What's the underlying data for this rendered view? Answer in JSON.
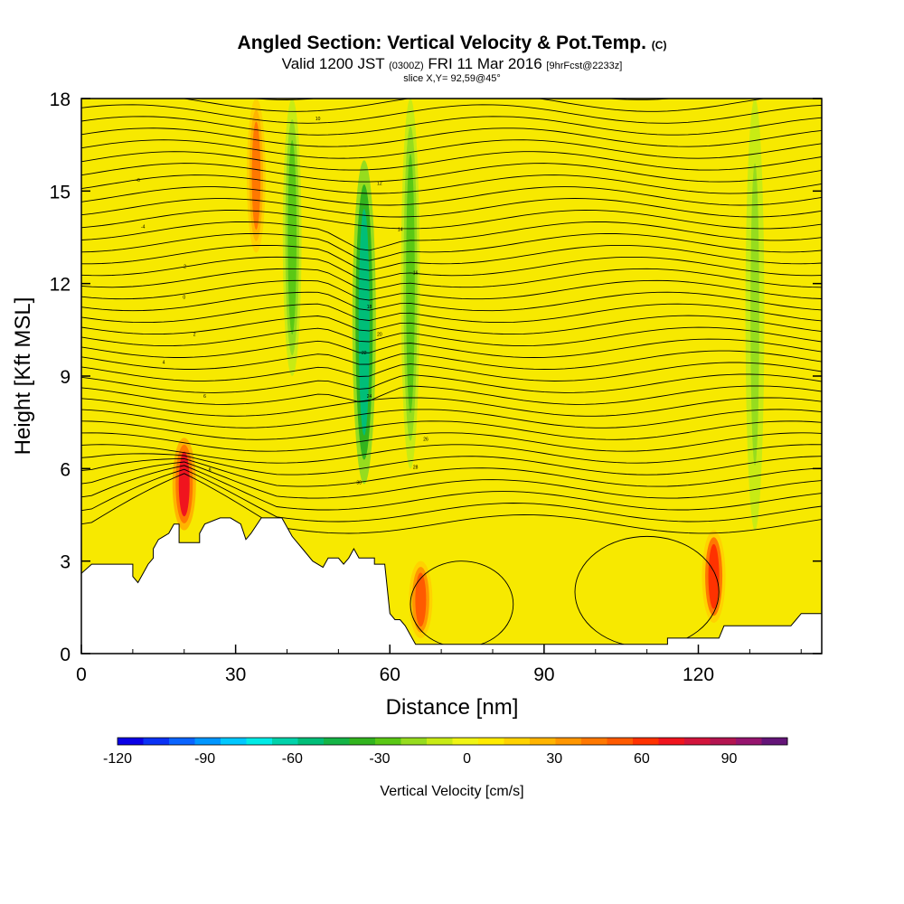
{
  "chart_data": {
    "type": "heatmap",
    "title": "Angled Section: Vertical Velocity & Pot.Temp.",
    "title_unit": "(C)",
    "subtitle_prefix": "Valid 1200 JST",
    "subtitle_utc": "(0300Z)",
    "subtitle_date": "FRI 11 Mar 2016",
    "subtitle_fcst": "[9hrFcst@2233z]",
    "subtitle_slice": "slice X,Y= 92,59@45°",
    "xlabel": "Distance [nm]",
    "ylabel": "Height [Kft MSL]",
    "xlim": [
      0,
      144
    ],
    "ylim": [
      0,
      18
    ],
    "xticks": [
      "0",
      "30",
      "60",
      "90",
      "120"
    ],
    "yticks": [
      "0",
      "3",
      "6",
      "9",
      "12",
      "15",
      "18"
    ],
    "colorbar": {
      "label": "Vertical Velocity [cm/s]",
      "range": [
        -120,
        110
      ],
      "tick_labels": [
        "-120",
        "-90",
        "-60",
        "-30",
        "0",
        "30",
        "60",
        "90"
      ],
      "colors": [
        "#0a00e6",
        "#0a32f5",
        "#0a64ff",
        "#0096ff",
        "#00c8ff",
        "#00ebe6",
        "#00d2aa",
        "#00be78",
        "#14b446",
        "#32b41e",
        "#5ac814",
        "#96dc1e",
        "#c8eb14",
        "#f0f514",
        "#ffeb00",
        "#ffd200",
        "#ffb400",
        "#ff9600",
        "#ff7800",
        "#ff5a00",
        "#ff3200",
        "#f0141e",
        "#d2143c",
        "#b41450",
        "#96146e",
        "#641478"
      ]
    },
    "contour_labels": [
      "-6",
      "-4",
      "-2",
      "0",
      "2",
      "4",
      "6",
      "8",
      "10",
      "12",
      "14",
      "16",
      "18",
      "20",
      "22",
      "24",
      "26",
      "28",
      "30"
    ],
    "vertical_velocity_features": [
      {
        "distance": 20,
        "height_top": 7,
        "height_bottom": 4,
        "peak_cms": 70
      },
      {
        "distance": 34,
        "height_top": 18,
        "height_bottom": 13,
        "peak_cms": 40
      },
      {
        "distance": 41,
        "height_top": 18,
        "height_bottom": 9,
        "peak_cms": -30
      },
      {
        "distance": 55,
        "height_top": 16,
        "height_bottom": 5.5,
        "peak_cms": -50
      },
      {
        "distance": 64,
        "height_top": 18,
        "height_bottom": 6,
        "peak_cms": -30
      },
      {
        "distance": 66,
        "height_top": 3,
        "height_bottom": 0.5,
        "peak_cms": 50
      },
      {
        "distance": 123,
        "height_top": 4,
        "height_bottom": 1,
        "peak_cms": 60
      },
      {
        "distance": 131,
        "height_top": 18,
        "height_bottom": 4,
        "peak_cms": -20
      }
    ],
    "terrain": [
      [
        0,
        2.6
      ],
      [
        2,
        2.9
      ],
      [
        10,
        2.9
      ],
      [
        10,
        2.5
      ],
      [
        11,
        2.3
      ],
      [
        12,
        2.6
      ],
      [
        13,
        2.9
      ],
      [
        14,
        3.1
      ],
      [
        14,
        3.4
      ],
      [
        15,
        3.7
      ],
      [
        16,
        3.8
      ],
      [
        17,
        3.9
      ],
      [
        18,
        4.2
      ],
      [
        19,
        4.2
      ],
      [
        19,
        3.6
      ],
      [
        23,
        3.6
      ],
      [
        23,
        3.9
      ],
      [
        24,
        4.2
      ],
      [
        27,
        4.4
      ],
      [
        29,
        4.4
      ],
      [
        31,
        4.2
      ],
      [
        32,
        3.7
      ],
      [
        33,
        3.9
      ],
      [
        35,
        4.4
      ],
      [
        39,
        4.4
      ],
      [
        41,
        3.8
      ],
      [
        43,
        3.4
      ],
      [
        45,
        3.0
      ],
      [
        47,
        2.8
      ],
      [
        48,
        3.1
      ],
      [
        50,
        3.1
      ],
      [
        51,
        2.9
      ],
      [
        52,
        3.1
      ],
      [
        53,
        3.4
      ],
      [
        54,
        3.1
      ],
      [
        57,
        3.1
      ],
      [
        57,
        2.9
      ],
      [
        59,
        2.9
      ],
      [
        60,
        1.3
      ],
      [
        61,
        1.1
      ],
      [
        62,
        1.1
      ],
      [
        63,
        0.9
      ],
      [
        64,
        0.6
      ],
      [
        65,
        0.3
      ],
      [
        114,
        0.3
      ],
      [
        114,
        0.5
      ],
      [
        124,
        0.5
      ],
      [
        125,
        0.9
      ],
      [
        126,
        0.9
      ],
      [
        127,
        0.9
      ],
      [
        129,
        0.9
      ],
      [
        130,
        0.9
      ],
      [
        133,
        0.9
      ],
      [
        134,
        0.9
      ],
      [
        135,
        0.9
      ],
      [
        138,
        0.9
      ],
      [
        139,
        1.1
      ],
      [
        140,
        1.3
      ],
      [
        144,
        1.3
      ]
    ]
  }
}
